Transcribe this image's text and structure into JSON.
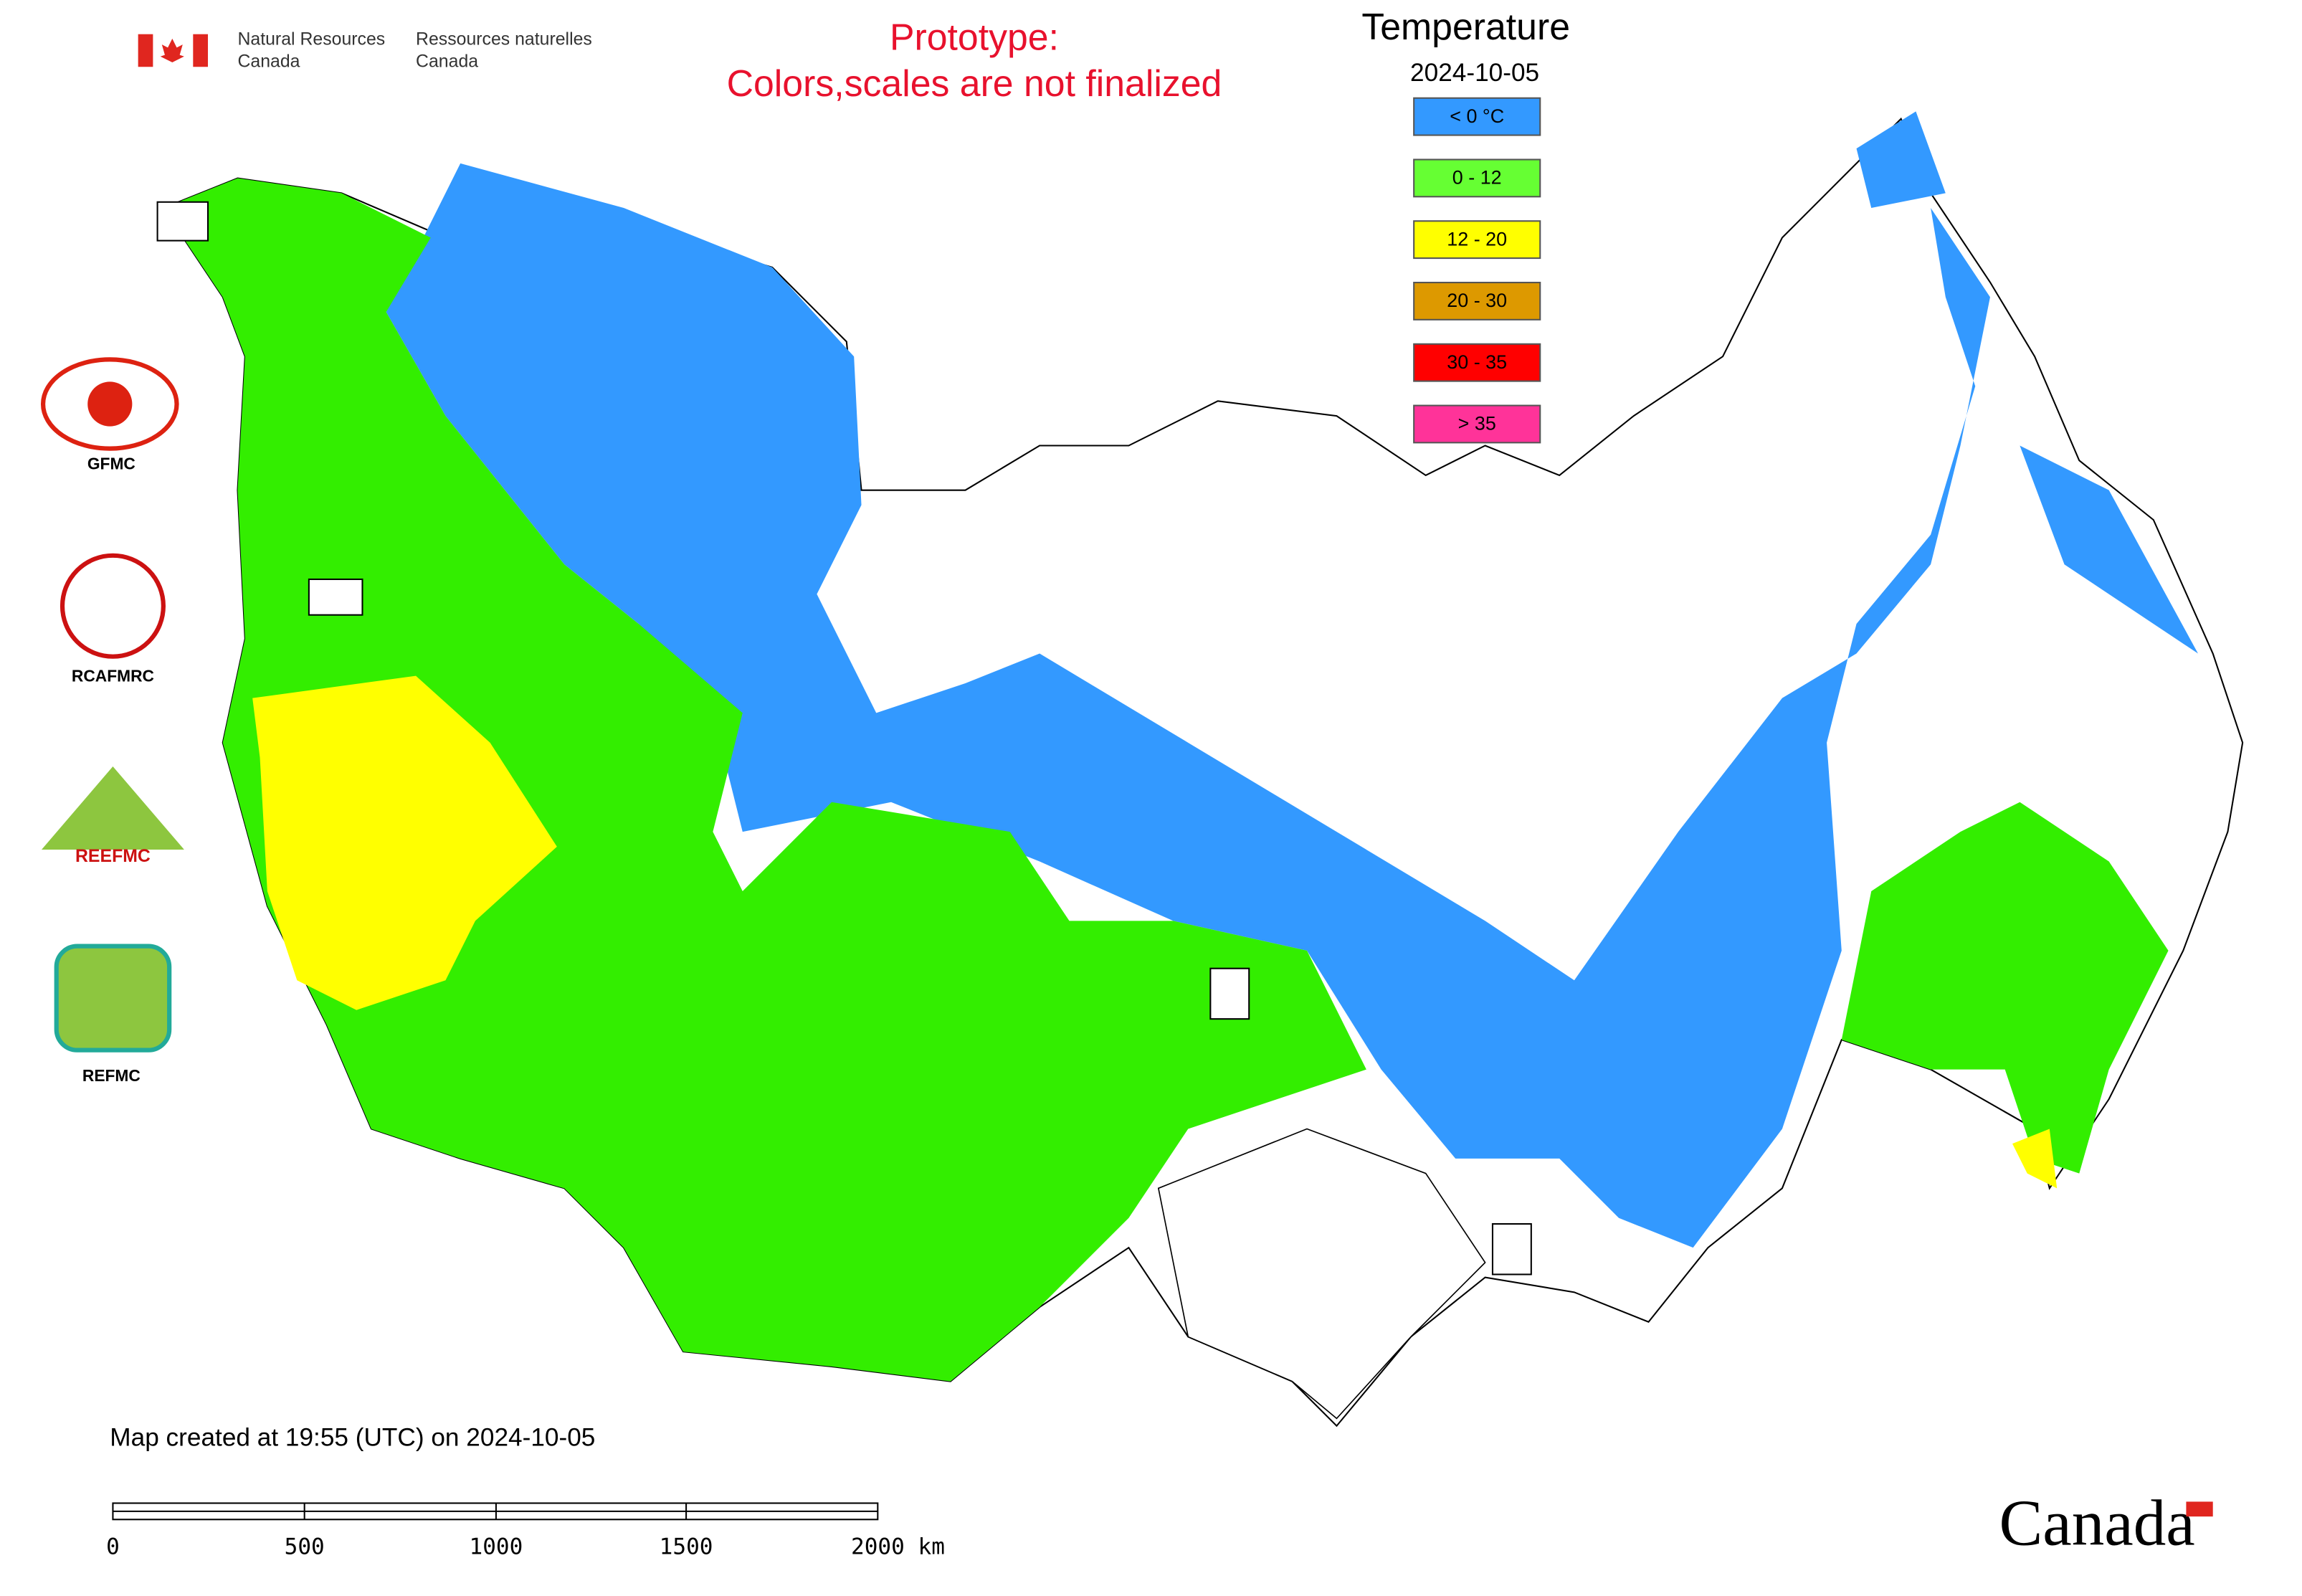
{
  "header": {
    "agency_en": "Natural Resources",
    "agency_en_2": "Canada",
    "agency_fr": "Ressources naturelles",
    "agency_fr_2": "Canada"
  },
  "notice": {
    "line1": "Prototype:",
    "line2": "Colors,scales are not finalized"
  },
  "legend": {
    "title": "Temperature",
    "date": "2024-10-05",
    "items": [
      {
        "label": "< 0 °C",
        "color": "#3399ff"
      },
      {
        "label": "0 - 12",
        "color": "#66ff33"
      },
      {
        "label": "12 - 20",
        "color": "#ffff00"
      },
      {
        "label": "20 - 30",
        "color": "#dd9900"
      },
      {
        "label": "30 - 35",
        "color": "#ff0000"
      },
      {
        "label": "> 35",
        "color": "#ff3399"
      }
    ]
  },
  "logos": {
    "gfmc": "GFMC",
    "rcafmrc": "RCAFMRC",
    "reefmc": "REEFMC",
    "refmc": "REFMC"
  },
  "footer": {
    "created": "Map created at 19:55 (UTC) on 2024-10-05",
    "wordmark": "Canada"
  },
  "scale_bar": {
    "labels": [
      "0",
      "500",
      "1000",
      "1500",
      "2000 km"
    ]
  }
}
